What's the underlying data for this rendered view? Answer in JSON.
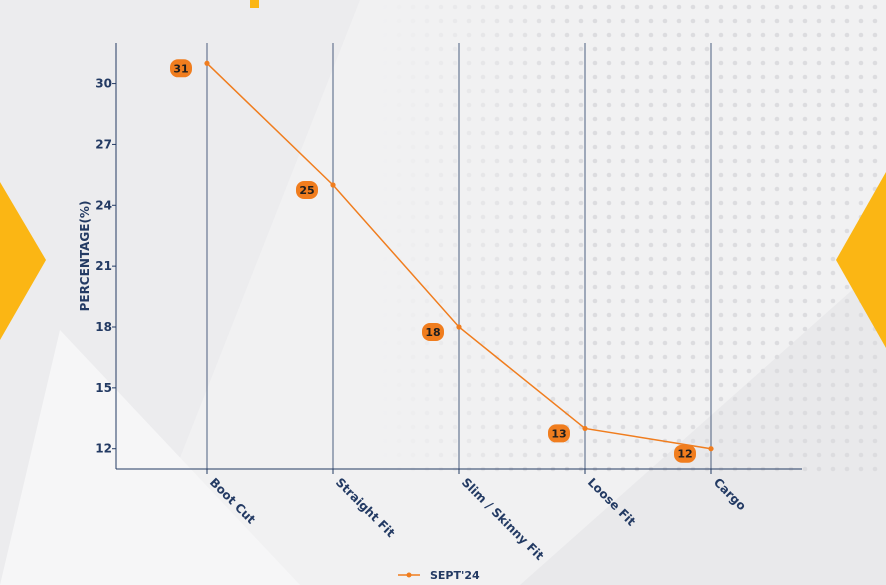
{
  "chart_data": {
    "type": "line",
    "categories": [
      "Boot Cut",
      "Straight Fit",
      "Slim / Skinny Fit",
      "Loose Fit",
      "Cargo"
    ],
    "series": [
      {
        "name": "SEPT'24",
        "values": [
          31,
          25,
          18,
          13,
          12
        ]
      }
    ],
    "data_labels": [
      "31",
      "25",
      "18",
      "13",
      "12"
    ],
    "title": "",
    "xlabel": "",
    "ylabel": "PERCENTAGE(%)",
    "ylim": [
      11,
      32
    ],
    "yticks": [
      12,
      15,
      18,
      21,
      24,
      27,
      30
    ],
    "grid": "vertical",
    "legend": "bottom-center",
    "colors": {
      "line": "#f07d1e",
      "label_bg": "#f07d1e",
      "axis": "#233a63",
      "accent": "#fbb614"
    }
  }
}
